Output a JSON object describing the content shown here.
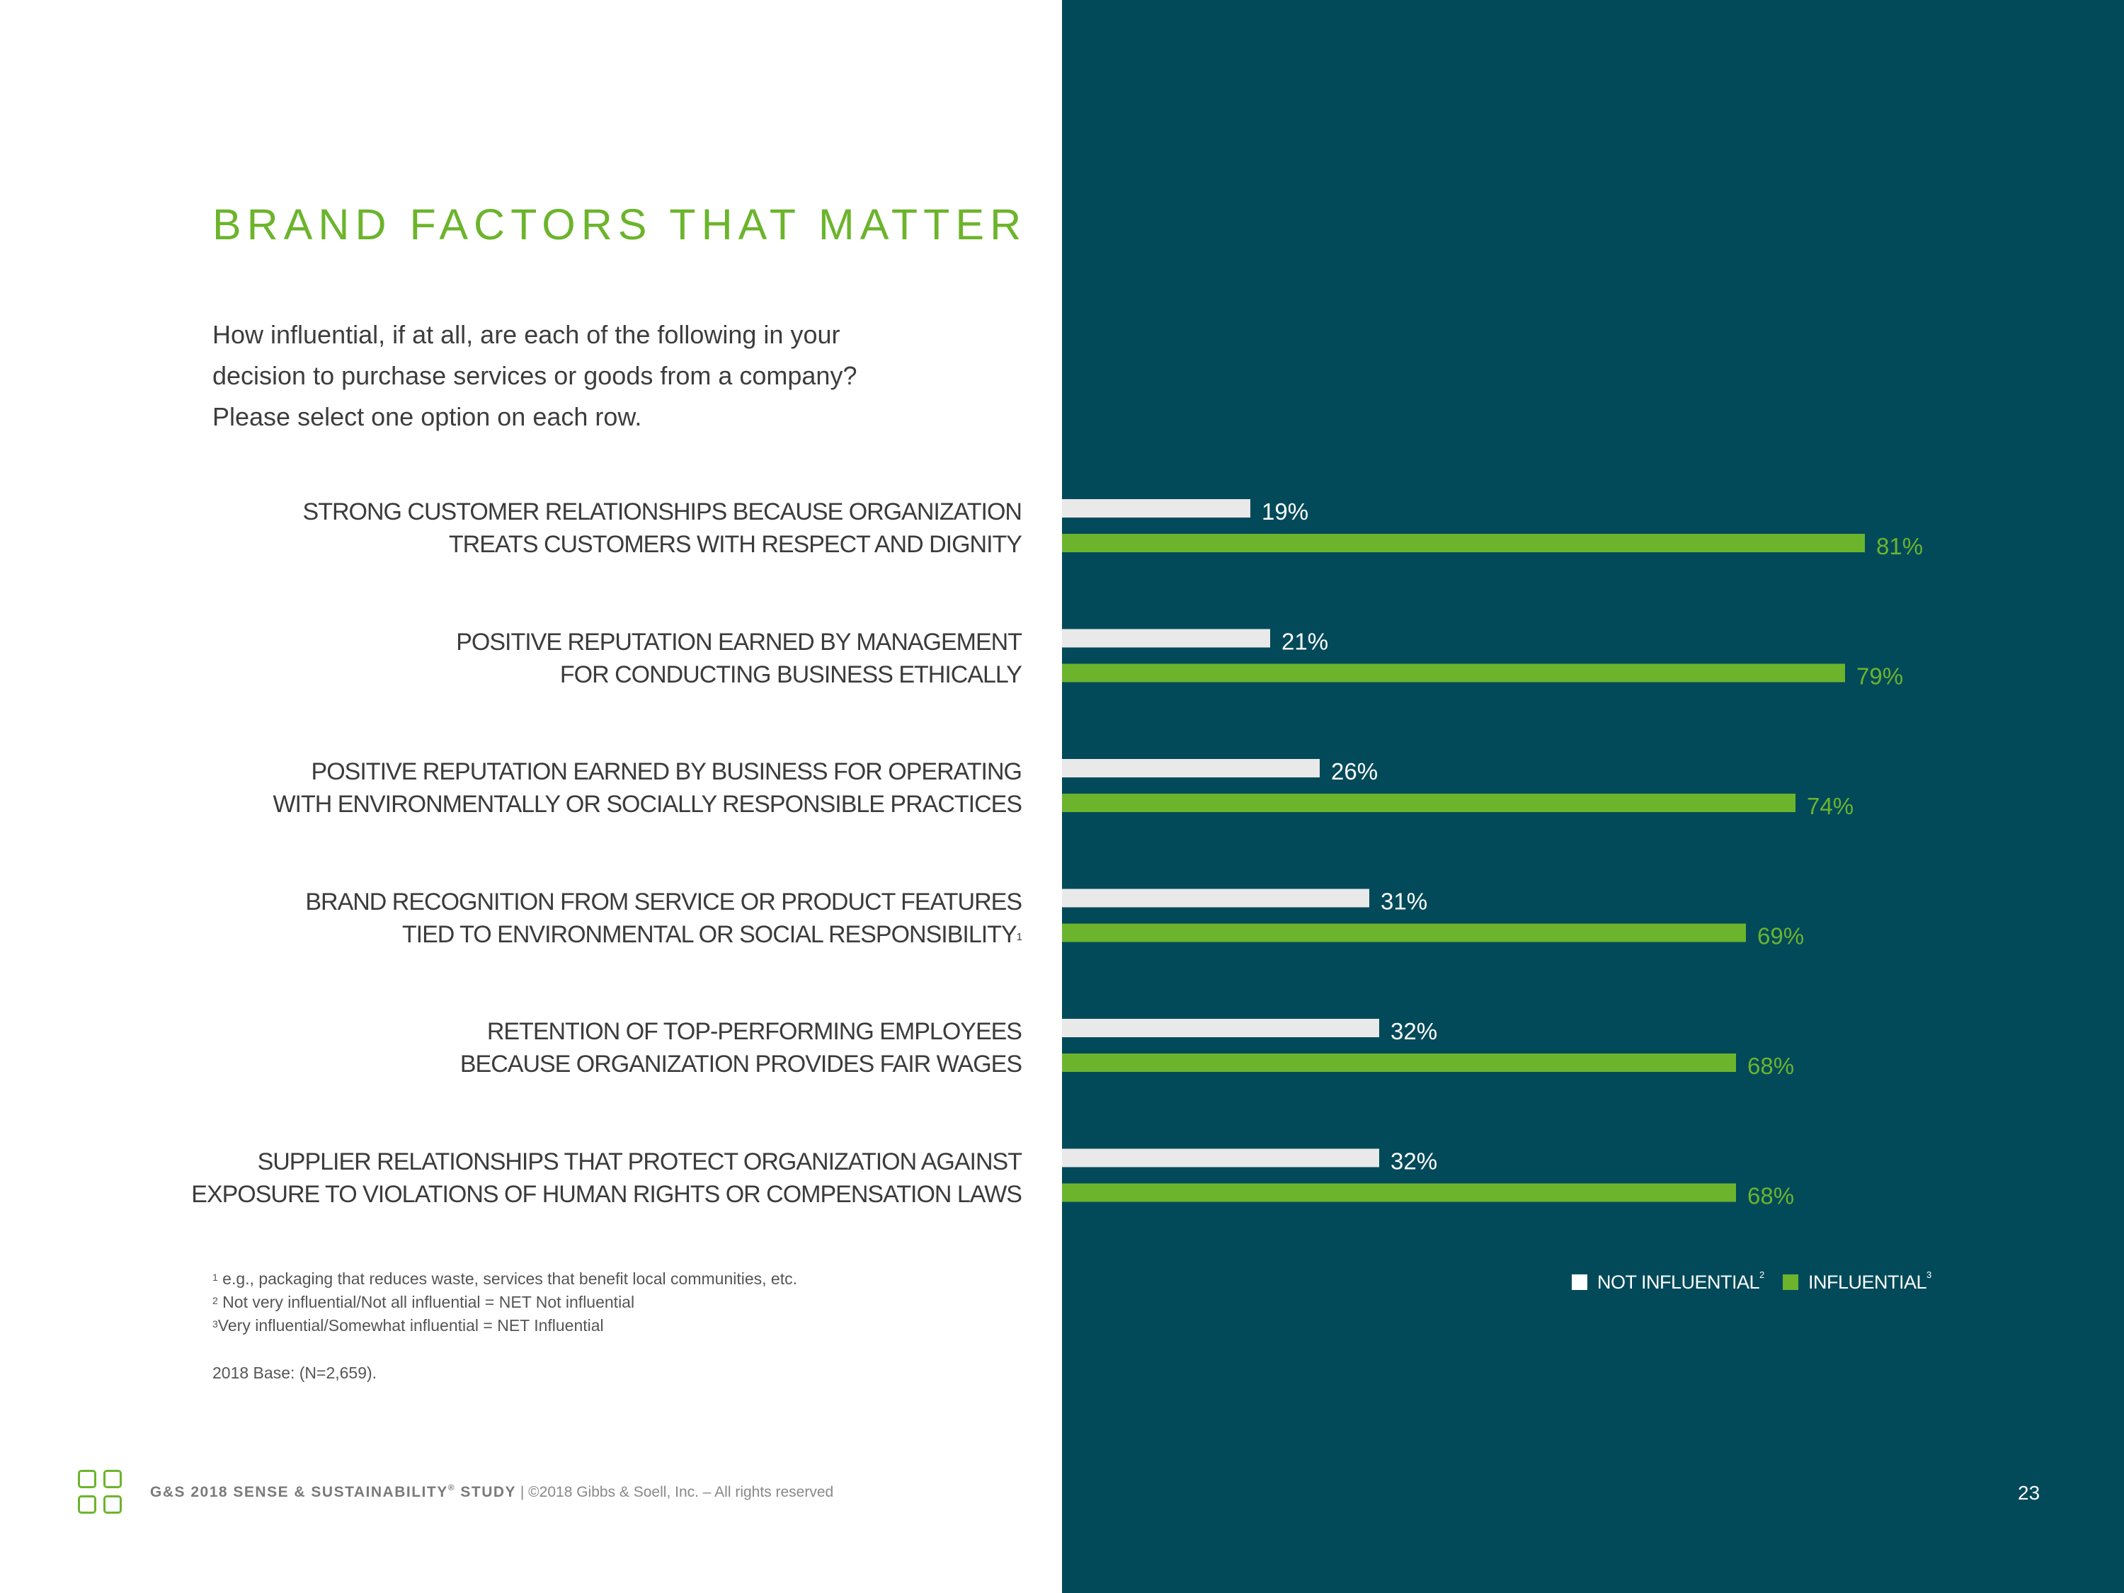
{
  "title": "BRAND FACTORS THAT MATTER",
  "question": [
    "How influential, if at all, are each of the following in your",
    "decision to purchase services or goods from a company?",
    "Please select one option on each row."
  ],
  "colors": {
    "background_right": "#024a5a",
    "accent_green": "#6cb42c",
    "bar_light": "#e9e9e9"
  },
  "chart_data": {
    "type": "bar",
    "orientation": "horizontal",
    "categories": [
      {
        "lines": [
          "STRONG CUSTOMER RELATIONSHIPS BECAUSE ORGANIZATION",
          "TREATS CUSTOMERS WITH RESPECT AND DIGNITY"
        ],
        "sup": ""
      },
      {
        "lines": [
          "POSITIVE REPUTATION EARNED BY MANAGEMENT",
          "FOR CONDUCTING BUSINESS ETHICALLY"
        ],
        "sup": ""
      },
      {
        "lines": [
          "POSITIVE REPUTATION EARNED BY BUSINESS FOR OPERATING",
          "WITH ENVIRONMENTALLY OR SOCIALLY RESPONSIBLE PRACTICES"
        ],
        "sup": ""
      },
      {
        "lines": [
          "BRAND RECOGNITION FROM SERVICE OR PRODUCT FEATURES",
          "TIED TO ENVIRONMENTAL OR SOCIAL RESPONSIBILITY"
        ],
        "sup": "1"
      },
      {
        "lines": [
          "RETENTION OF TOP-PERFORMING EMPLOYEES",
          "BECAUSE ORGANIZATION PROVIDES FAIR WAGES"
        ],
        "sup": ""
      },
      {
        "lines": [
          "SUPPLIER RELATIONSHIPS THAT PROTECT ORGANIZATION AGAINST",
          "EXPOSURE TO VIOLATIONS OF HUMAN RIGHTS OR COMPENSATION LAWS"
        ],
        "sup": ""
      }
    ],
    "series": [
      {
        "name": "NOT INFLUENTIAL",
        "sup": "2",
        "values": [
          19,
          21,
          26,
          31,
          32,
          32
        ],
        "labels": [
          "19%",
          "21%",
          "26%",
          "31%",
          "32%",
          "32%"
        ],
        "color": "#e9e9e9",
        "label_color": "#ffffff"
      },
      {
        "name": "INFLUENTIAL",
        "sup": "3",
        "values": [
          81,
          79,
          74,
          69,
          68,
          68
        ],
        "labels": [
          "81%",
          "79%",
          "74%",
          "69%",
          "68%",
          "68%"
        ],
        "color": "#6cb42c",
        "label_color": "#6cb42c"
      }
    ],
    "xlim": [
      0,
      100
    ],
    "grid": false,
    "legend_position": "bottom-right"
  },
  "footnotes": [
    {
      "sup": "1",
      "text": " e.g., packaging that reduces waste, services that benefit local communities, etc."
    },
    {
      "sup": "2",
      "text": " Not very influential/Not all influential = NET Not influential"
    },
    {
      "sup": "3",
      "text": "Very influential/Somewhat influential = NET Influential"
    }
  ],
  "base_note": "2018 Base: (N=2,659).",
  "footer": {
    "study_prefix": "G&S 2018 SENSE & SUSTAINABILITY",
    "reg": "®",
    "study_suffix": " STUDY",
    "rest": " | ©2018 Gibbs & Soell, Inc. – All rights reserved"
  },
  "page_number": "23"
}
